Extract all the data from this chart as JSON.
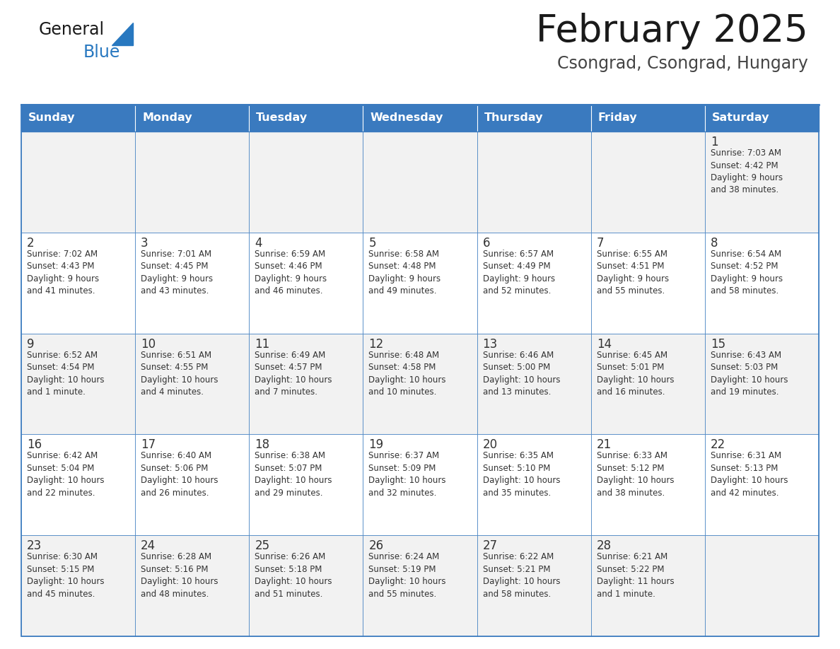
{
  "title": "February 2025",
  "subtitle": "Csongrad, Csongrad, Hungary",
  "days_of_week": [
    "Sunday",
    "Monday",
    "Tuesday",
    "Wednesday",
    "Thursday",
    "Friday",
    "Saturday"
  ],
  "header_bg": "#3a7abf",
  "header_text": "#ffffff",
  "cell_bg_week1": "#f2f2f2",
  "cell_bg_week2": "#ffffff",
  "cell_bg_week3": "#f2f2f2",
  "cell_bg_week4": "#ffffff",
  "cell_bg_week5": "#f2f2f2",
  "cell_border": "#3a7abf",
  "day_number_color": "#333333",
  "info_text_color": "#333333",
  "title_color": "#1a1a1a",
  "subtitle_color": "#444444",
  "logo_general_color": "#1a1a1a",
  "logo_blue_color": "#2878c0",
  "fig_width": 11.88,
  "fig_height": 9.18,
  "fig_dpi": 100,
  "weeks": [
    [
      {
        "day": null,
        "info": ""
      },
      {
        "day": null,
        "info": ""
      },
      {
        "day": null,
        "info": ""
      },
      {
        "day": null,
        "info": ""
      },
      {
        "day": null,
        "info": ""
      },
      {
        "day": null,
        "info": ""
      },
      {
        "day": 1,
        "info": "Sunrise: 7:03 AM\nSunset: 4:42 PM\nDaylight: 9 hours\nand 38 minutes."
      }
    ],
    [
      {
        "day": 2,
        "info": "Sunrise: 7:02 AM\nSunset: 4:43 PM\nDaylight: 9 hours\nand 41 minutes."
      },
      {
        "day": 3,
        "info": "Sunrise: 7:01 AM\nSunset: 4:45 PM\nDaylight: 9 hours\nand 43 minutes."
      },
      {
        "day": 4,
        "info": "Sunrise: 6:59 AM\nSunset: 4:46 PM\nDaylight: 9 hours\nand 46 minutes."
      },
      {
        "day": 5,
        "info": "Sunrise: 6:58 AM\nSunset: 4:48 PM\nDaylight: 9 hours\nand 49 minutes."
      },
      {
        "day": 6,
        "info": "Sunrise: 6:57 AM\nSunset: 4:49 PM\nDaylight: 9 hours\nand 52 minutes."
      },
      {
        "day": 7,
        "info": "Sunrise: 6:55 AM\nSunset: 4:51 PM\nDaylight: 9 hours\nand 55 minutes."
      },
      {
        "day": 8,
        "info": "Sunrise: 6:54 AM\nSunset: 4:52 PM\nDaylight: 9 hours\nand 58 minutes."
      }
    ],
    [
      {
        "day": 9,
        "info": "Sunrise: 6:52 AM\nSunset: 4:54 PM\nDaylight: 10 hours\nand 1 minute."
      },
      {
        "day": 10,
        "info": "Sunrise: 6:51 AM\nSunset: 4:55 PM\nDaylight: 10 hours\nand 4 minutes."
      },
      {
        "day": 11,
        "info": "Sunrise: 6:49 AM\nSunset: 4:57 PM\nDaylight: 10 hours\nand 7 minutes."
      },
      {
        "day": 12,
        "info": "Sunrise: 6:48 AM\nSunset: 4:58 PM\nDaylight: 10 hours\nand 10 minutes."
      },
      {
        "day": 13,
        "info": "Sunrise: 6:46 AM\nSunset: 5:00 PM\nDaylight: 10 hours\nand 13 minutes."
      },
      {
        "day": 14,
        "info": "Sunrise: 6:45 AM\nSunset: 5:01 PM\nDaylight: 10 hours\nand 16 minutes."
      },
      {
        "day": 15,
        "info": "Sunrise: 6:43 AM\nSunset: 5:03 PM\nDaylight: 10 hours\nand 19 minutes."
      }
    ],
    [
      {
        "day": 16,
        "info": "Sunrise: 6:42 AM\nSunset: 5:04 PM\nDaylight: 10 hours\nand 22 minutes."
      },
      {
        "day": 17,
        "info": "Sunrise: 6:40 AM\nSunset: 5:06 PM\nDaylight: 10 hours\nand 26 minutes."
      },
      {
        "day": 18,
        "info": "Sunrise: 6:38 AM\nSunset: 5:07 PM\nDaylight: 10 hours\nand 29 minutes."
      },
      {
        "day": 19,
        "info": "Sunrise: 6:37 AM\nSunset: 5:09 PM\nDaylight: 10 hours\nand 32 minutes."
      },
      {
        "day": 20,
        "info": "Sunrise: 6:35 AM\nSunset: 5:10 PM\nDaylight: 10 hours\nand 35 minutes."
      },
      {
        "day": 21,
        "info": "Sunrise: 6:33 AM\nSunset: 5:12 PM\nDaylight: 10 hours\nand 38 minutes."
      },
      {
        "day": 22,
        "info": "Sunrise: 6:31 AM\nSunset: 5:13 PM\nDaylight: 10 hours\nand 42 minutes."
      }
    ],
    [
      {
        "day": 23,
        "info": "Sunrise: 6:30 AM\nSunset: 5:15 PM\nDaylight: 10 hours\nand 45 minutes."
      },
      {
        "day": 24,
        "info": "Sunrise: 6:28 AM\nSunset: 5:16 PM\nDaylight: 10 hours\nand 48 minutes."
      },
      {
        "day": 25,
        "info": "Sunrise: 6:26 AM\nSunset: 5:18 PM\nDaylight: 10 hours\nand 51 minutes."
      },
      {
        "day": 26,
        "info": "Sunrise: 6:24 AM\nSunset: 5:19 PM\nDaylight: 10 hours\nand 55 minutes."
      },
      {
        "day": 27,
        "info": "Sunrise: 6:22 AM\nSunset: 5:21 PM\nDaylight: 10 hours\nand 58 minutes."
      },
      {
        "day": 28,
        "info": "Sunrise: 6:21 AM\nSunset: 5:22 PM\nDaylight: 11 hours\nand 1 minute."
      },
      {
        "day": null,
        "info": ""
      }
    ]
  ],
  "row_bg_colors": [
    "#f2f2f2",
    "#ffffff",
    "#f2f2f2",
    "#ffffff",
    "#f2f2f2"
  ]
}
